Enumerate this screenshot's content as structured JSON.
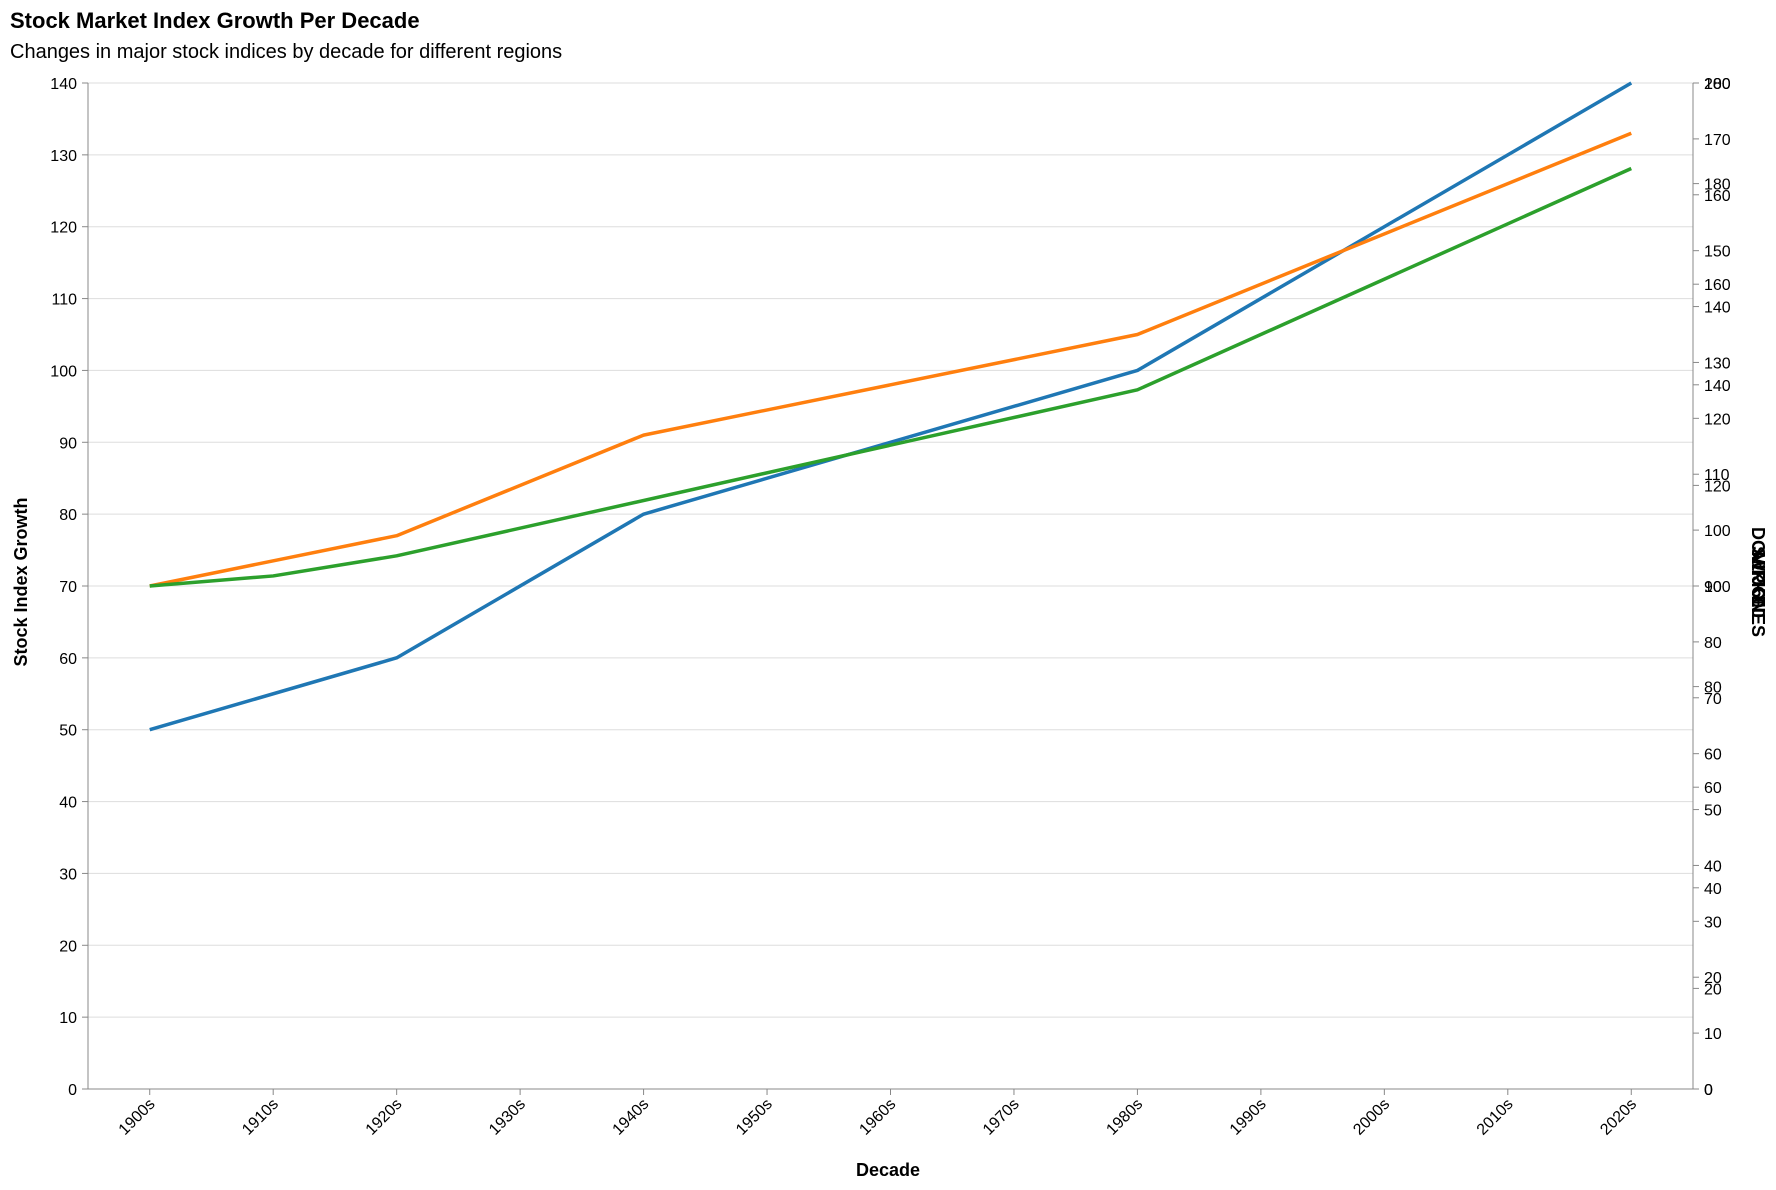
{
  "chart_data": {
    "type": "line",
    "title": "Stock Market Index Growth Per Decade",
    "subtitle": "Changes in major stock indices by decade for different regions",
    "xlabel": "Decade",
    "ylabel": "Stock Index Growth",
    "y2label": "DOW JONES",
    "y3label": "S&P 500",
    "y4label": "NIKKEI",
    "categories": [
      "1900s",
      "1910s",
      "1920s",
      "1930s",
      "1940s",
      "1950s",
      "1960s",
      "1970s",
      "1980s",
      "1990s",
      "2000s",
      "2010s",
      "2020s"
    ],
    "ylim": [
      0,
      140
    ],
    "yticks": [
      0,
      10,
      20,
      30,
      40,
      50,
      60,
      70,
      80,
      90,
      100,
      110,
      120,
      130,
      140
    ],
    "right_axes": [
      {
        "ticks": [
          0,
          10,
          20,
          30,
          40,
          50,
          60,
          70,
          80,
          90,
          100,
          110,
          120,
          130,
          140,
          150,
          160,
          170,
          180
        ],
        "max": 180
      },
      {
        "ticks": [
          0,
          20,
          40,
          60,
          80,
          100,
          120,
          140,
          160,
          180,
          200
        ],
        "max": 200
      }
    ],
    "grid": true,
    "series": [
      {
        "color": "#1f77b4",
        "axis": "left",
        "values": [
          50,
          null,
          60,
          null,
          80,
          null,
          90,
          null,
          100,
          null,
          null,
          null,
          140
        ]
      },
      {
        "color": "#ff7f0e",
        "axis": "right1",
        "values": [
          90,
          null,
          99,
          null,
          117,
          null,
          null,
          null,
          135,
          null,
          null,
          null,
          171
        ]
      },
      {
        "color": "#2ca02c",
        "axis": "right2",
        "values": [
          100,
          102,
          106,
          null,
          null,
          null,
          null,
          null,
          139,
          null,
          null,
          null,
          183
        ]
      }
    ]
  }
}
